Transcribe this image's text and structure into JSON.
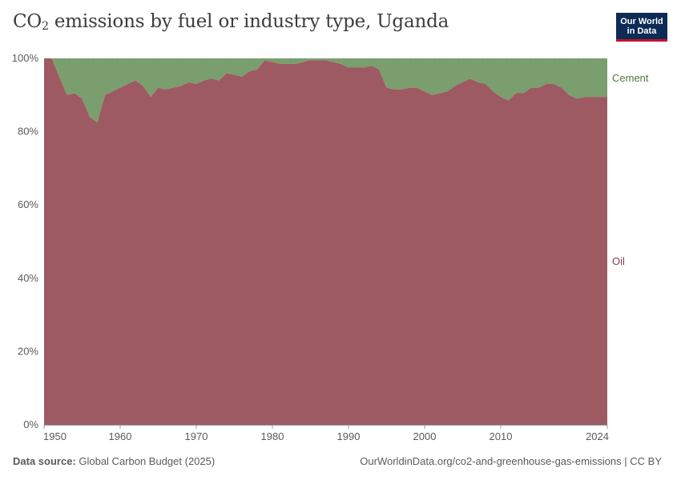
{
  "title": {
    "pre": "CO",
    "sub": "2",
    "post": " emissions by fuel or industry type, Uganda"
  },
  "logo": {
    "line1": "Our World",
    "line2": "in Data"
  },
  "footer": {
    "source_label": "Data source:",
    "source_value": " Global Carbon Budget (2025)",
    "right": "OurWorldinData.org/co2-and-greenhouse-gas-emissions | CC BY"
  },
  "colors": {
    "oil": "#9e5a63",
    "cement": "#7a9e6d",
    "oil_text": "#8b3a4b",
    "cement_text": "#4c7a3d",
    "grid": "#dddddd"
  },
  "chart_data": {
    "type": "area",
    "stacked": true,
    "normalized": true,
    "title": "CO₂ emissions by fuel or industry type, Uganda",
    "xlabel": "",
    "ylabel": "",
    "xlim": [
      1950,
      2024
    ],
    "ylim": [
      0,
      100
    ],
    "y_ticks": [
      0,
      20,
      40,
      60,
      80,
      100
    ],
    "y_tick_labels": [
      "0%",
      "20%",
      "40%",
      "60%",
      "80%",
      "100%"
    ],
    "x_ticks": [
      1950,
      1960,
      1970,
      1980,
      1990,
      2000,
      2010,
      2024
    ],
    "x_tick_labels": [
      "1950",
      "1960",
      "1970",
      "1980",
      "1990",
      "2000",
      "2010",
      "2024"
    ],
    "x": [
      1950,
      1951,
      1952,
      1953,
      1954,
      1955,
      1956,
      1957,
      1958,
      1959,
      1960,
      1961,
      1962,
      1963,
      1964,
      1965,
      1966,
      1967,
      1968,
      1969,
      1970,
      1971,
      1972,
      1973,
      1974,
      1975,
      1976,
      1977,
      1978,
      1979,
      1980,
      1981,
      1982,
      1983,
      1984,
      1985,
      1986,
      1987,
      1988,
      1989,
      1990,
      1991,
      1992,
      1993,
      1994,
      1995,
      1996,
      1997,
      1998,
      1999,
      2000,
      2001,
      2002,
      2003,
      2004,
      2005,
      2006,
      2007,
      2008,
      2009,
      2010,
      2011,
      2012,
      2013,
      2014,
      2015,
      2016,
      2017,
      2018,
      2019,
      2020,
      2021,
      2022,
      2023,
      2024
    ],
    "series": [
      {
        "name": "Oil",
        "values": [
          100,
          100,
          95,
          90,
          90.5,
          89,
          84,
          82.5,
          90,
          91,
          92,
          93,
          94,
          92.5,
          89.5,
          92,
          91.5,
          92,
          92.5,
          93.5,
          93,
          94,
          94.5,
          94,
          96,
          95.5,
          95,
          96.5,
          97,
          99.5,
          99,
          98.5,
          98.5,
          98.5,
          99,
          99.5,
          99.5,
          99.5,
          99,
          98.5,
          97.5,
          97.5,
          97.5,
          98,
          97,
          92,
          91.5,
          91.5,
          92,
          92,
          91,
          90,
          90.5,
          91,
          92.5,
          93.5,
          94.5,
          93.5,
          93,
          91,
          89.5,
          88.5,
          90.5,
          90.5,
          92,
          92,
          93,
          93,
          92,
          90,
          89,
          89.5,
          89.5,
          89.5,
          89.5
        ]
      },
      {
        "name": "Cement",
        "values": [
          0,
          0,
          5,
          10,
          9.5,
          11,
          16,
          17.5,
          10,
          9,
          8,
          7,
          6,
          7.5,
          10.5,
          8,
          8.5,
          8,
          7.5,
          6.5,
          7,
          6,
          5.5,
          6,
          4,
          4.5,
          5,
          3.5,
          3,
          0.5,
          1,
          1.5,
          1.5,
          1.5,
          1,
          0.5,
          0.5,
          0.5,
          1,
          1.5,
          2.5,
          2.5,
          2.5,
          2,
          3,
          8,
          8.5,
          8.5,
          8,
          8,
          9,
          10,
          9.5,
          9,
          7.5,
          6.5,
          5.5,
          6.5,
          7,
          9,
          10.5,
          11.5,
          9.5,
          9.5,
          8,
          8,
          7,
          7,
          8,
          10,
          11,
          10.5,
          10.5,
          10.5,
          10.5
        ]
      }
    ]
  }
}
